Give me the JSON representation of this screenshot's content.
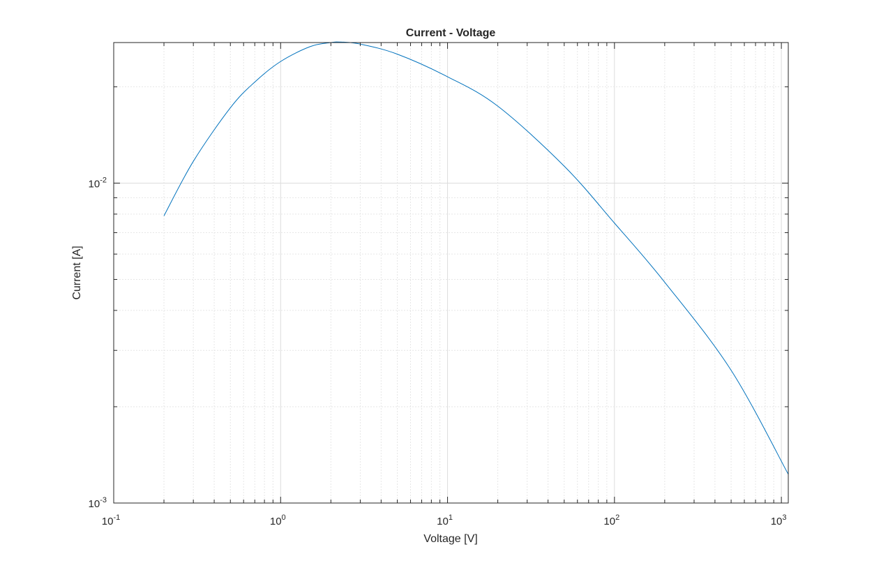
{
  "chart_data": {
    "type": "line",
    "title": "Current - Voltage",
    "xlabel": "Voltage [V]",
    "ylabel": "Current [A]",
    "xscale": "log",
    "yscale": "log",
    "xlim": [
      0.1,
      1100
    ],
    "ylim": [
      0.001,
      0.0275
    ],
    "grid": true,
    "minor_grid": true,
    "line_color": "#0072BD",
    "x_ticks": [
      {
        "base": "10",
        "exp": "-1"
      },
      {
        "base": "10",
        "exp": "0"
      },
      {
        "base": "10",
        "exp": "1"
      },
      {
        "base": "10",
        "exp": "2"
      },
      {
        "base": "10",
        "exp": "3"
      }
    ],
    "y_ticks": [
      {
        "base": "10",
        "exp": "-3"
      },
      {
        "base": "10",
        "exp": "-2"
      }
    ],
    "x_tick_values": [
      0.1,
      1,
      10,
      100,
      1000
    ],
    "y_tick_values": [
      0.001,
      0.01
    ],
    "series": [
      {
        "x": [
          0.2,
          0.3,
          0.5,
          0.7,
          1.0,
          1.5,
          2.0,
          2.3,
          3.0,
          5.0,
          10,
          20,
          50,
          100,
          200,
          500,
          1100
        ],
        "y": [
          0.0079,
          0.0117,
          0.0172,
          0.0207,
          0.024,
          0.0267,
          0.0275,
          0.0276,
          0.0272,
          0.0253,
          0.0215,
          0.0174,
          0.0113,
          0.0075,
          0.0049,
          0.0026,
          0.00123
        ]
      }
    ]
  }
}
